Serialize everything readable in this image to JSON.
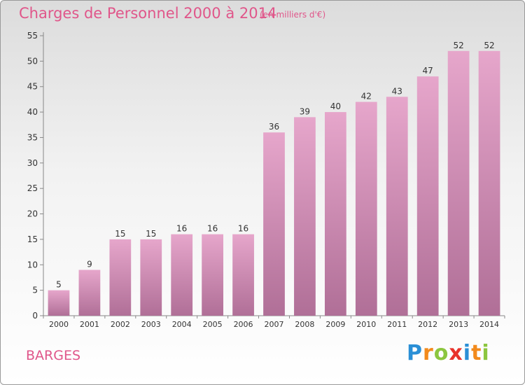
{
  "header": {
    "title": "Charges de Personnel 2000 à 2014",
    "subtitle": "(en milliers d'€)"
  },
  "commune": "BARGES",
  "logo": {
    "text": "Proxiti",
    "letters": [
      {
        "ch": "P",
        "color": "#2a8fd6"
      },
      {
        "ch": "r",
        "color": "#f28a1c"
      },
      {
        "ch": "o",
        "color": "#8cc63f"
      },
      {
        "ch": "x",
        "color": "#e8322b"
      },
      {
        "ch": "i",
        "color": "#2a8fd6"
      },
      {
        "ch": "t",
        "color": "#f28a1c"
      },
      {
        "ch": "i",
        "color": "#8cc63f"
      }
    ]
  },
  "colors": {
    "accent": "#e0568a",
    "bar_top": "#e6a6cb",
    "bar_bottom": "#b06f97"
  },
  "chart_data": {
    "type": "bar",
    "categories": [
      "2000",
      "2001",
      "2002",
      "2003",
      "2004",
      "2005",
      "2006",
      "2007",
      "2008",
      "2009",
      "2010",
      "2011",
      "2012",
      "2013",
      "2014"
    ],
    "values": [
      5,
      9,
      15,
      15,
      16,
      16,
      16,
      36,
      39,
      40,
      42,
      43,
      47,
      52,
      52
    ],
    "data_labels": [
      "5",
      "9",
      "15",
      "15",
      "16",
      "16",
      "16",
      "36",
      "39",
      "40",
      "42",
      "43",
      "47",
      "52",
      "52"
    ],
    "y_ticks": [
      0,
      5,
      10,
      15,
      20,
      25,
      30,
      35,
      40,
      45,
      50,
      55
    ],
    "ylim": [
      0,
      55
    ],
    "grid": false,
    "legend": "none"
  }
}
